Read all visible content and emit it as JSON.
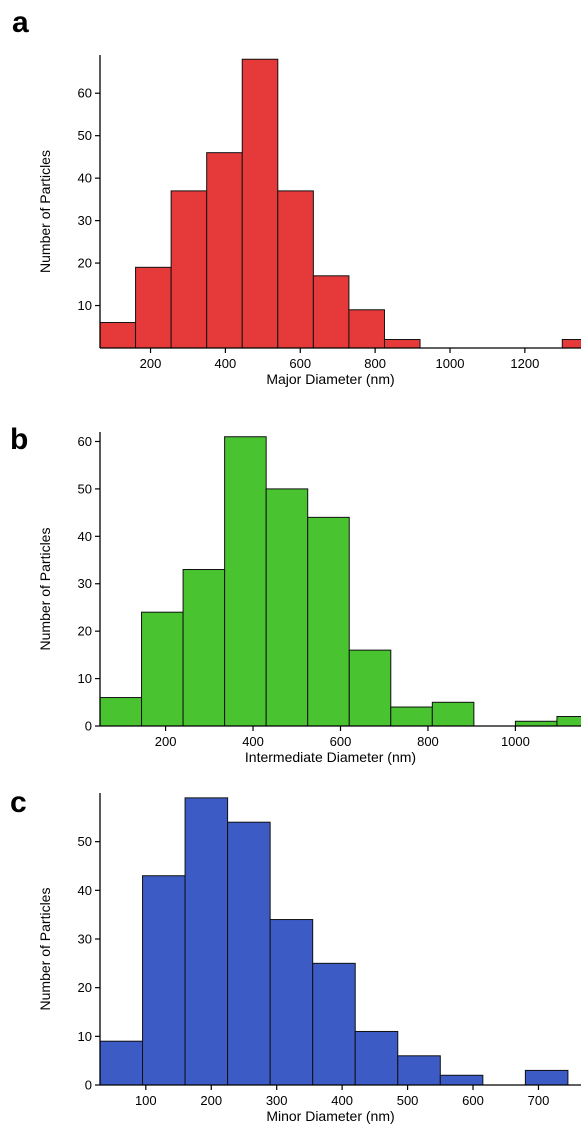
{
  "chart_data": [
    {
      "type": "bar",
      "panel_label": "a",
      "xlabel": "Major Diameter (nm)",
      "ylabel": "Number of Particles",
      "xlim": [
        65,
        1350
      ],
      "ylim": [
        0,
        69
      ],
      "xticks": [
        200,
        400,
        600,
        800,
        1000,
        1200
      ],
      "yticks": [
        10,
        20,
        30,
        40,
        50,
        60
      ],
      "bin_edges": [
        65,
        160,
        255,
        350,
        445,
        540,
        635,
        730,
        825,
        920,
        1015,
        1110,
        1205,
        1300,
        1395
      ],
      "values": [
        6,
        19,
        37,
        46,
        68,
        37,
        17,
        9,
        2,
        0,
        0,
        0,
        0,
        2
      ],
      "color": "#e63a3a"
    },
    {
      "type": "bar",
      "panel_label": "b",
      "xlabel": "Intermediate Diameter (nm)",
      "ylabel": "Number of Particles",
      "xlim": [
        50,
        1150
      ],
      "ylim": [
        0,
        62
      ],
      "xticks": [
        200,
        400,
        600,
        800,
        1000
      ],
      "yticks": [
        0,
        10,
        20,
        30,
        40,
        50,
        60
      ],
      "bin_edges": [
        50,
        145,
        240,
        335,
        430,
        525,
        620,
        715,
        810,
        905,
        1000,
        1095,
        1190
      ],
      "values": [
        6,
        24,
        33,
        61,
        50,
        44,
        16,
        4,
        5,
        0,
        1,
        2
      ],
      "color": "#49c430"
    },
    {
      "type": "bar",
      "panel_label": "c",
      "xlabel": "Minor Diameter (nm)",
      "ylabel": "Number of Particles",
      "xlim": [
        30,
        765
      ],
      "ylim": [
        0,
        60
      ],
      "xticks": [
        100,
        200,
        300,
        400,
        500,
        600,
        700
      ],
      "yticks": [
        0,
        10,
        20,
        30,
        40,
        50
      ],
      "bin_edges": [
        30,
        95,
        160,
        225,
        290,
        355,
        420,
        485,
        550,
        615,
        680,
        745
      ],
      "values": [
        9,
        43,
        59,
        54,
        34,
        25,
        11,
        6,
        2,
        0,
        3
      ],
      "color": "#3d5bc4"
    }
  ]
}
